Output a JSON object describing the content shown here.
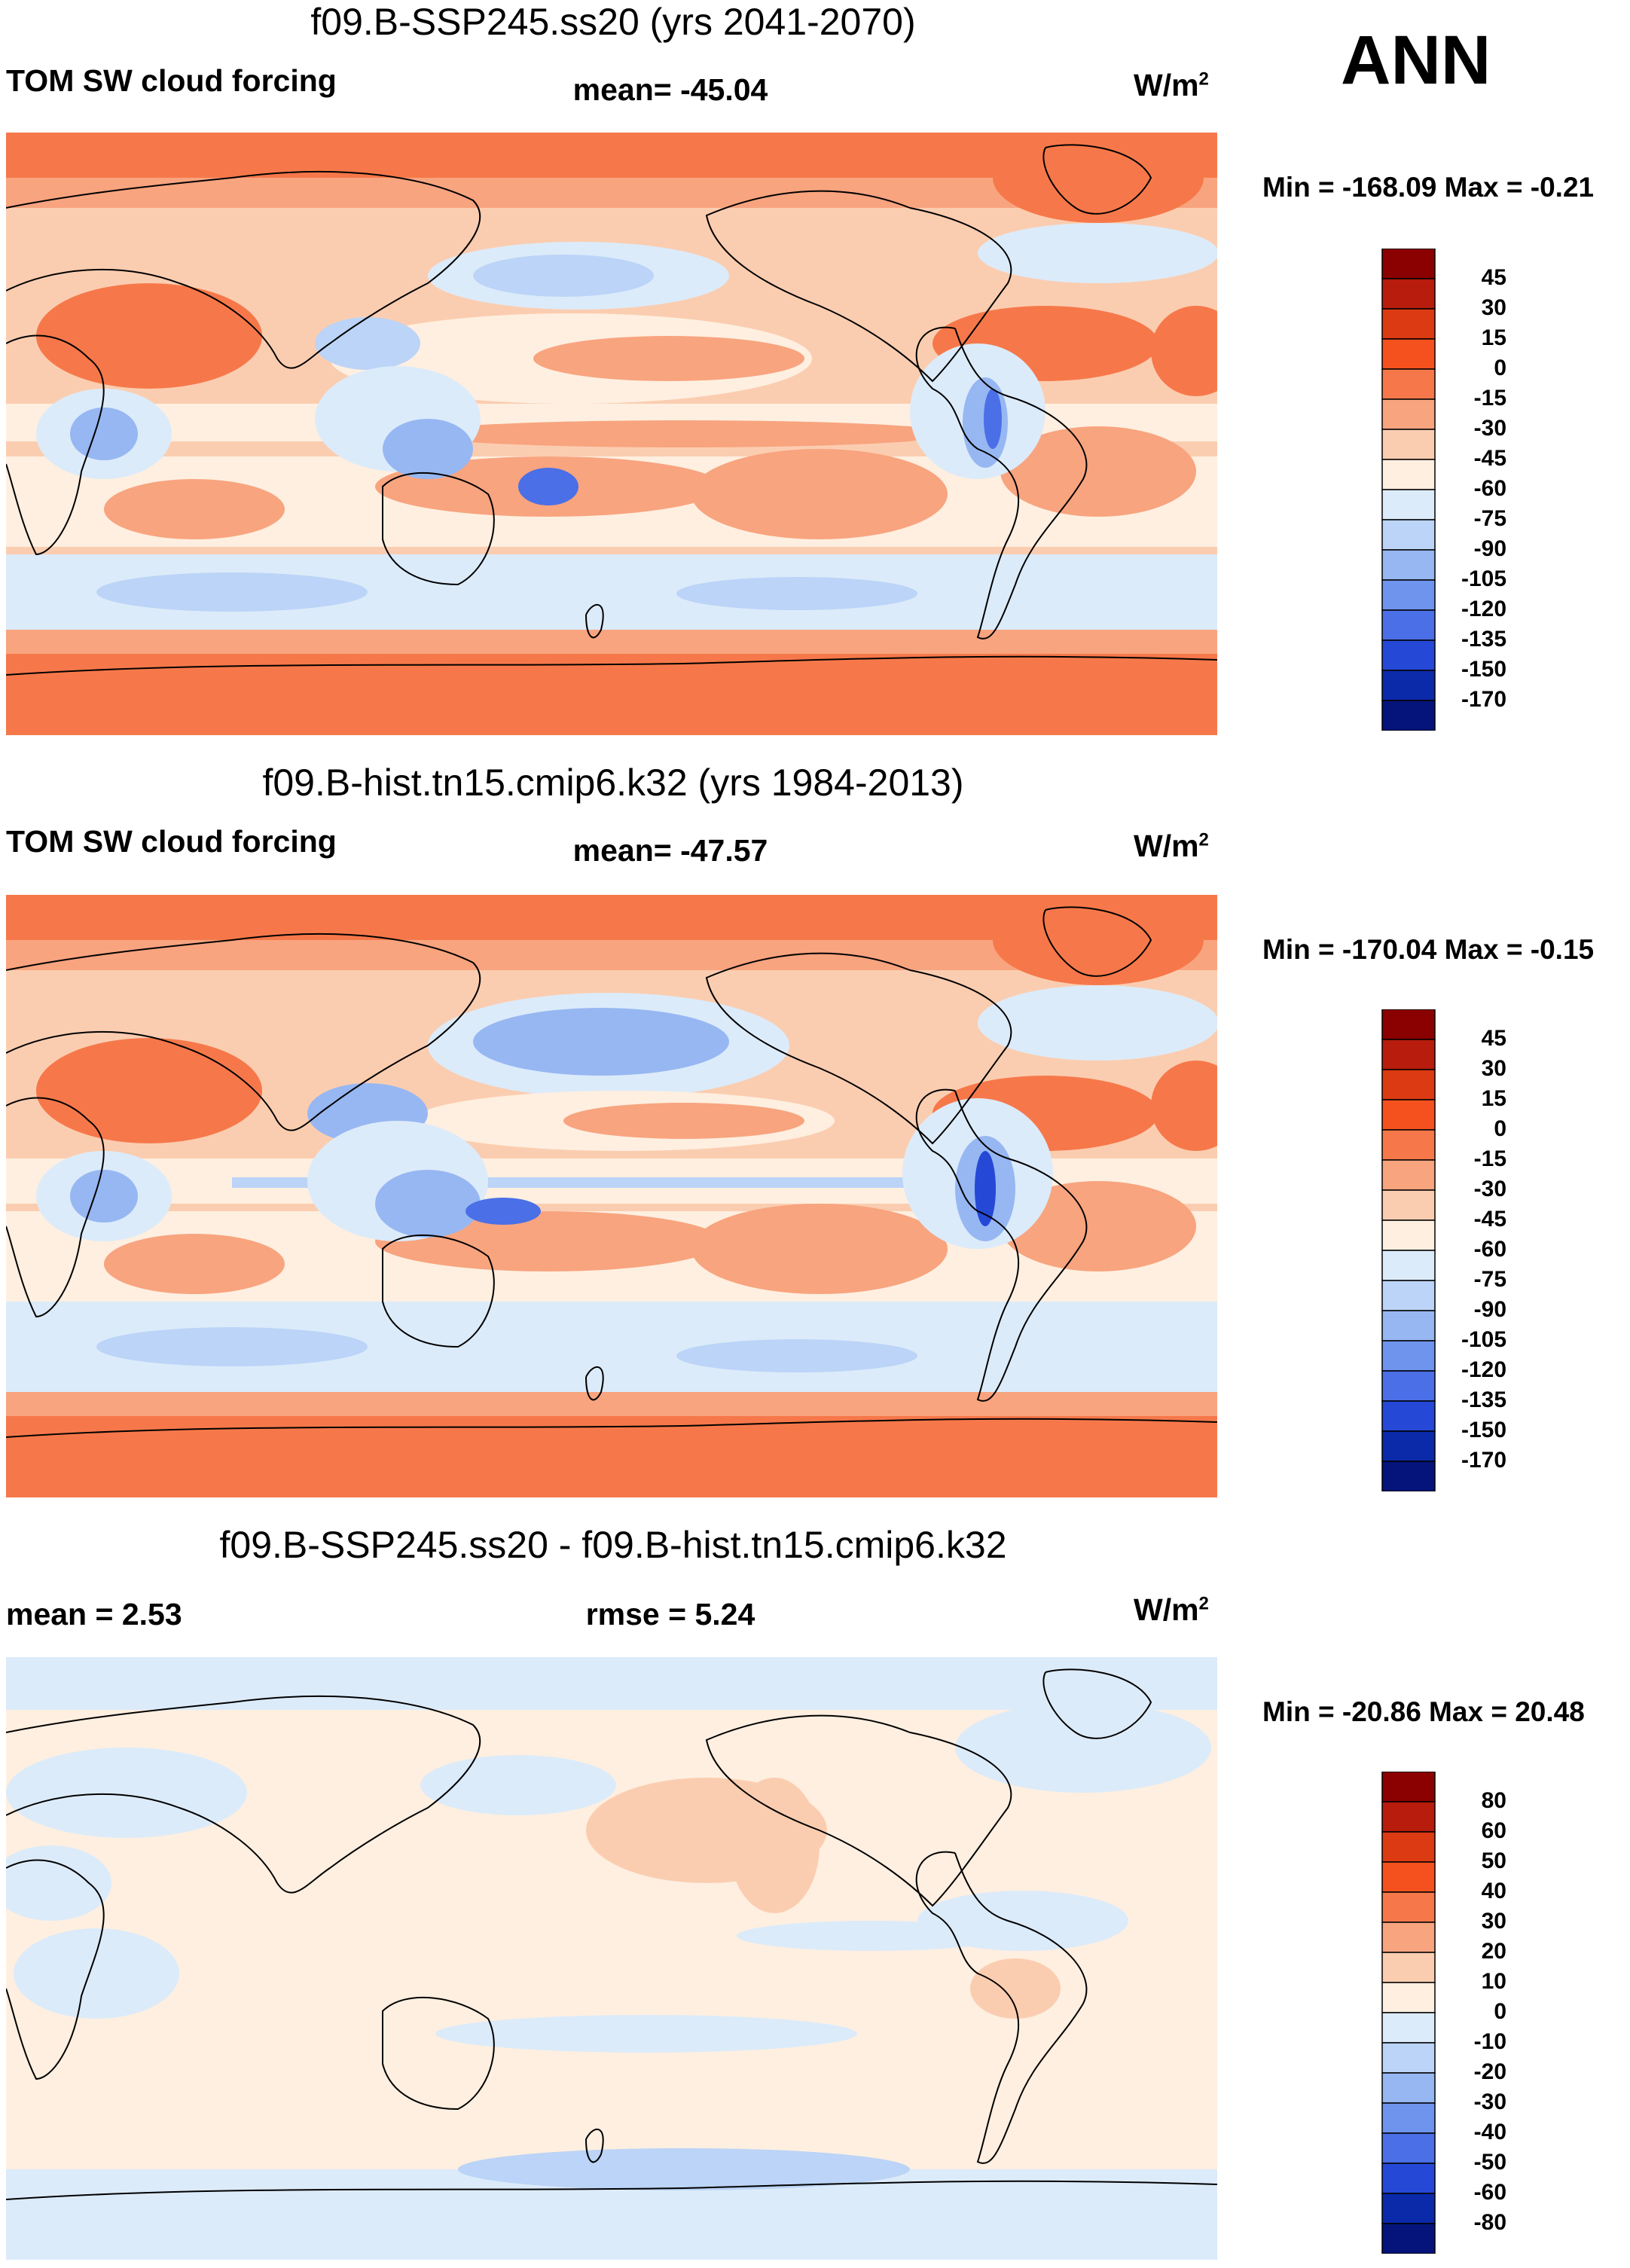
{
  "season": "ANN",
  "chart_data": [
    {
      "type": "heatmap",
      "title": "f09.B-SSP245.ss20 (yrs 2041-2070)",
      "variable": "TOM SW cloud forcing",
      "mean_label": "mean= -45.04",
      "units": "W/m",
      "units_exp": "2",
      "min_max": "Min = -168.09 Max =  -0.21",
      "projection": "global cylindrical equidistant, centered 180°",
      "colorbar_ticks": [
        "45",
        "30",
        "15",
        "0",
        "-15",
        "-30",
        "-45",
        "-60",
        "-75",
        "-90",
        "-105",
        "-120",
        "-135",
        "-150",
        "-170"
      ],
      "colors": [
        "#8B0000",
        "#B71C0C",
        "#DC3A12",
        "#F4511E",
        "#F6784A",
        "#F8A47F",
        "#FBCDB0",
        "#FEEFE0",
        "#DCEBFA",
        "#BBD4F7",
        "#97B7F2",
        "#6F94EE",
        "#4A6FE6",
        "#2548D6",
        "#0B2AAA",
        "#04147A"
      ]
    },
    {
      "type": "heatmap",
      "title": "f09.B-hist.tn15.cmip6.k32 (yrs 1984-2013)",
      "variable": "TOM SW cloud forcing",
      "mean_label": "mean= -47.57",
      "units": "W/m",
      "units_exp": "2",
      "min_max": "Min = -170.04 Max =  -0.15",
      "projection": "global cylindrical equidistant, centered 180°",
      "colorbar_ticks": [
        "45",
        "30",
        "15",
        "0",
        "-15",
        "-30",
        "-45",
        "-60",
        "-75",
        "-90",
        "-105",
        "-120",
        "-135",
        "-150",
        "-170"
      ],
      "colors": [
        "#8B0000",
        "#B71C0C",
        "#DC3A12",
        "#F4511E",
        "#F6784A",
        "#F8A47F",
        "#FBCDB0",
        "#FEEFE0",
        "#DCEBFA",
        "#BBD4F7",
        "#97B7F2",
        "#6F94EE",
        "#4A6FE6",
        "#2548D6",
        "#0B2AAA",
        "#04147A"
      ]
    },
    {
      "type": "heatmap",
      "title": "f09.B-SSP245.ss20 - f09.B-hist.tn15.cmip6.k32",
      "mean_text": "mean =   2.53",
      "rmse_text": "rmse =   5.24",
      "units": "W/m",
      "units_exp": "2",
      "min_max": "Min = -20.86 Max =  20.48",
      "projection": "global cylindrical equidistant, centered 180°",
      "colorbar_ticks": [
        "80",
        "60",
        "50",
        "40",
        "30",
        "20",
        "10",
        "0",
        "-10",
        "-20",
        "-30",
        "-40",
        "-50",
        "-60",
        "-80"
      ],
      "colors": [
        "#8B0000",
        "#B71C0C",
        "#DC3A12",
        "#F4511E",
        "#F6784A",
        "#F8A47F",
        "#FBCDB0",
        "#FEEFE0",
        "#DCEBFA",
        "#BBD4F7",
        "#97B7F2",
        "#6F94EE",
        "#4A6FE6",
        "#2548D6",
        "#0B2AAA",
        "#04147A"
      ]
    }
  ]
}
